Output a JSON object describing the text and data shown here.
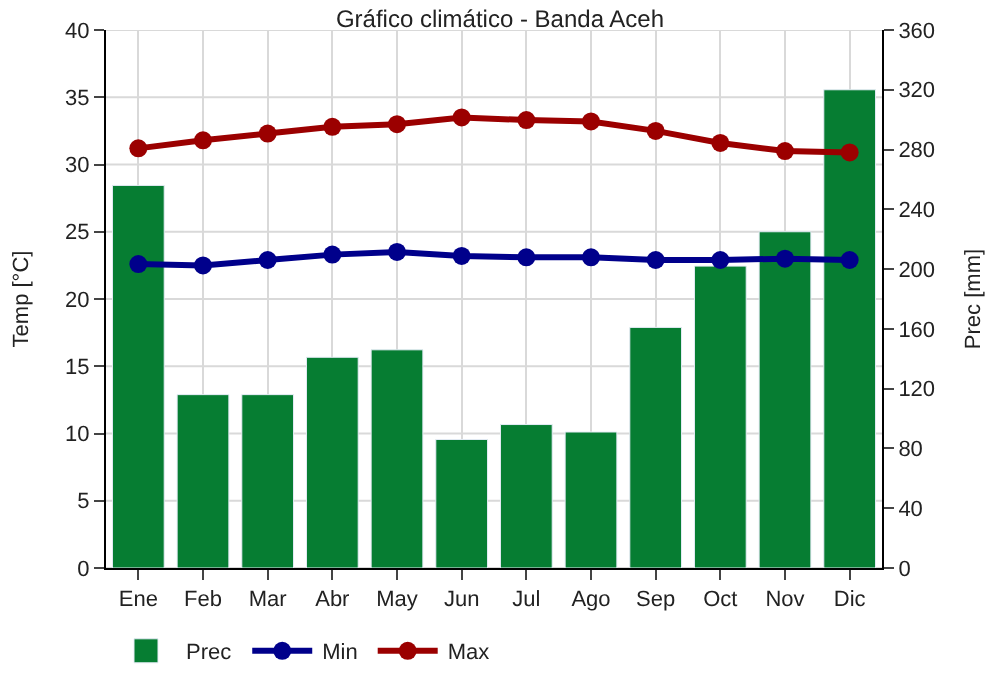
{
  "chart_data": {
    "type": "bar",
    "title": "Gráfico climático - Banda Aceh",
    "ylabel": "Temp [°C]",
    "y2label": "Prec [mm]",
    "categories": [
      "Ene",
      "Feb",
      "Mar",
      "Abr",
      "May",
      "Jun",
      "Jul",
      "Ago",
      "Sep",
      "Oct",
      "Nov",
      "Dic"
    ],
    "series": [
      {
        "name": "Prec",
        "axis": "y2",
        "color": "#067d32",
        "values": [
          256,
          116,
          116,
          141,
          146,
          86,
          96,
          91,
          161,
          202,
          225,
          320
        ]
      },
      {
        "name": "Min",
        "type": "line",
        "color": "#00008b",
        "values": [
          22.6,
          22.5,
          22.9,
          23.3,
          23.5,
          23.2,
          23.1,
          23.1,
          22.9,
          22.9,
          23.0,
          22.9
        ]
      },
      {
        "name": "Max",
        "type": "line",
        "color": "#9b0000",
        "values": [
          31.2,
          31.8,
          32.3,
          32.8,
          33.0,
          33.5,
          33.3,
          33.2,
          32.5,
          31.6,
          31.0,
          30.9
        ]
      }
    ],
    "ylim": [
      0,
      40
    ],
    "yticks": [
      0,
      5,
      10,
      15,
      20,
      25,
      30,
      35,
      40
    ],
    "y2lim": [
      0,
      360
    ],
    "y2ticks": [
      0,
      40,
      80,
      120,
      160,
      200,
      240,
      280,
      320,
      360
    ],
    "grid": true,
    "legend": "bottom left",
    "marker": "circle",
    "line_style": "solid"
  }
}
